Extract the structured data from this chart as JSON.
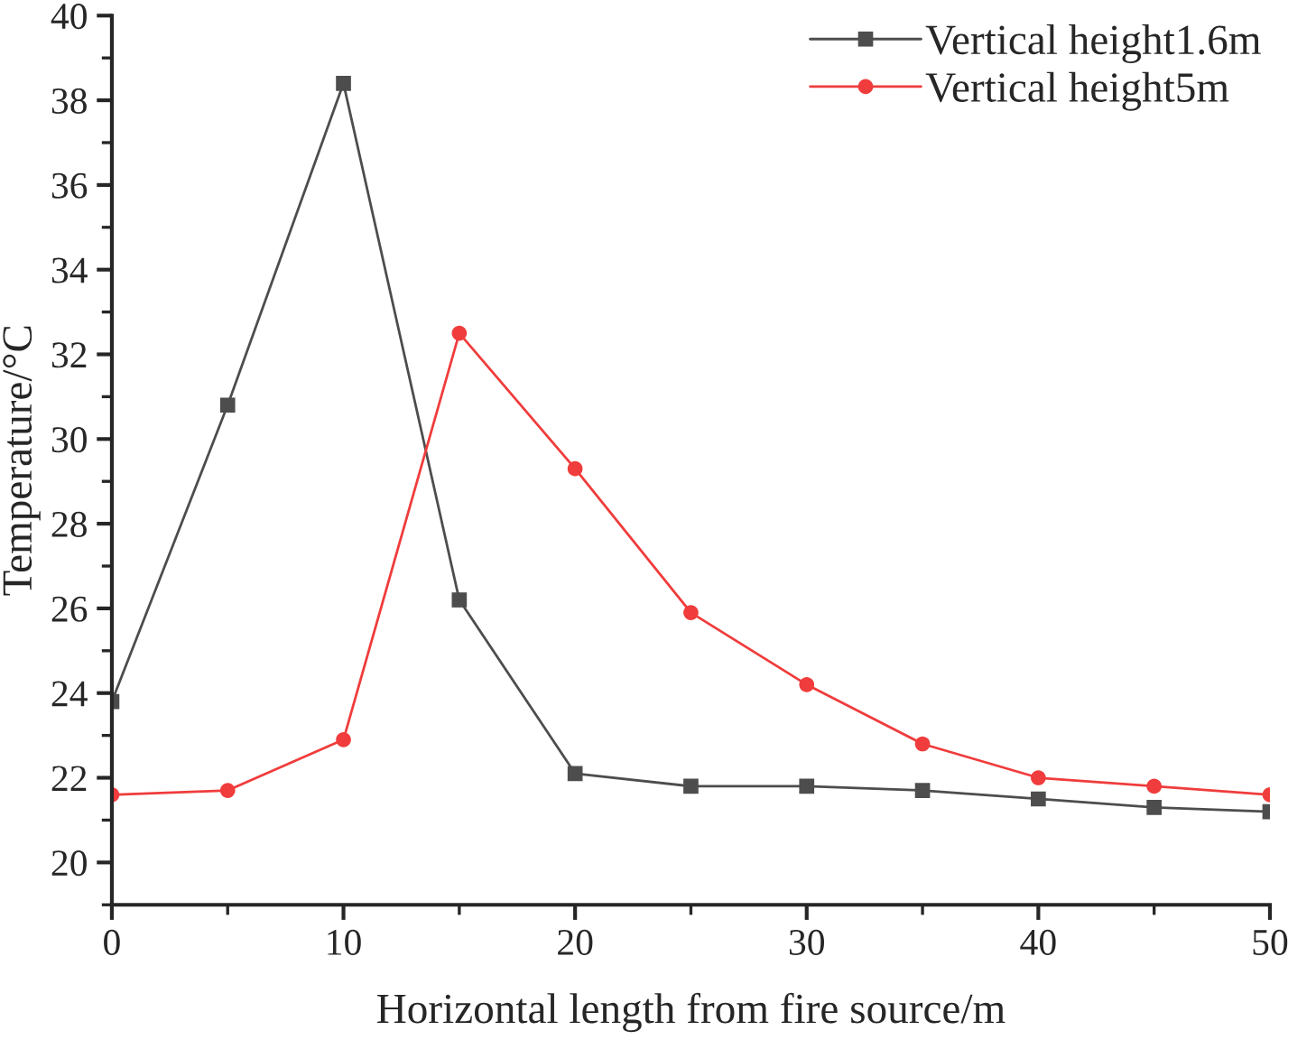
{
  "chart_data": {
    "type": "line",
    "xlabel": "Horizontal length from fire source/m",
    "ylabel": "Temperature/°C",
    "x": [
      0,
      5,
      10,
      15,
      20,
      25,
      30,
      35,
      40,
      45,
      50
    ],
    "series": [
      {
        "name": "Vertical height1.6m",
        "color": "#4d4d4d",
        "marker": "square",
        "values": [
          23.8,
          30.8,
          38.4,
          26.2,
          22.1,
          21.8,
          21.8,
          21.7,
          21.5,
          21.3,
          21.2
        ]
      },
      {
        "name": "Vertical height5m",
        "color": "#f03c3c",
        "marker": "circle",
        "values": [
          21.6,
          21.7,
          22.9,
          32.5,
          29.3,
          25.9,
          24.2,
          22.8,
          22.0,
          21.8,
          21.6
        ]
      }
    ],
    "xlim": [
      0,
      50
    ],
    "xticks": [
      0,
      10,
      20,
      30,
      40,
      50
    ],
    "ylim": [
      19,
      40
    ],
    "yticks": [
      20,
      22,
      24,
      26,
      28,
      30,
      32,
      34,
      36,
      38,
      40
    ],
    "grid": false,
    "legend": "top right",
    "line_style": "solid"
  }
}
